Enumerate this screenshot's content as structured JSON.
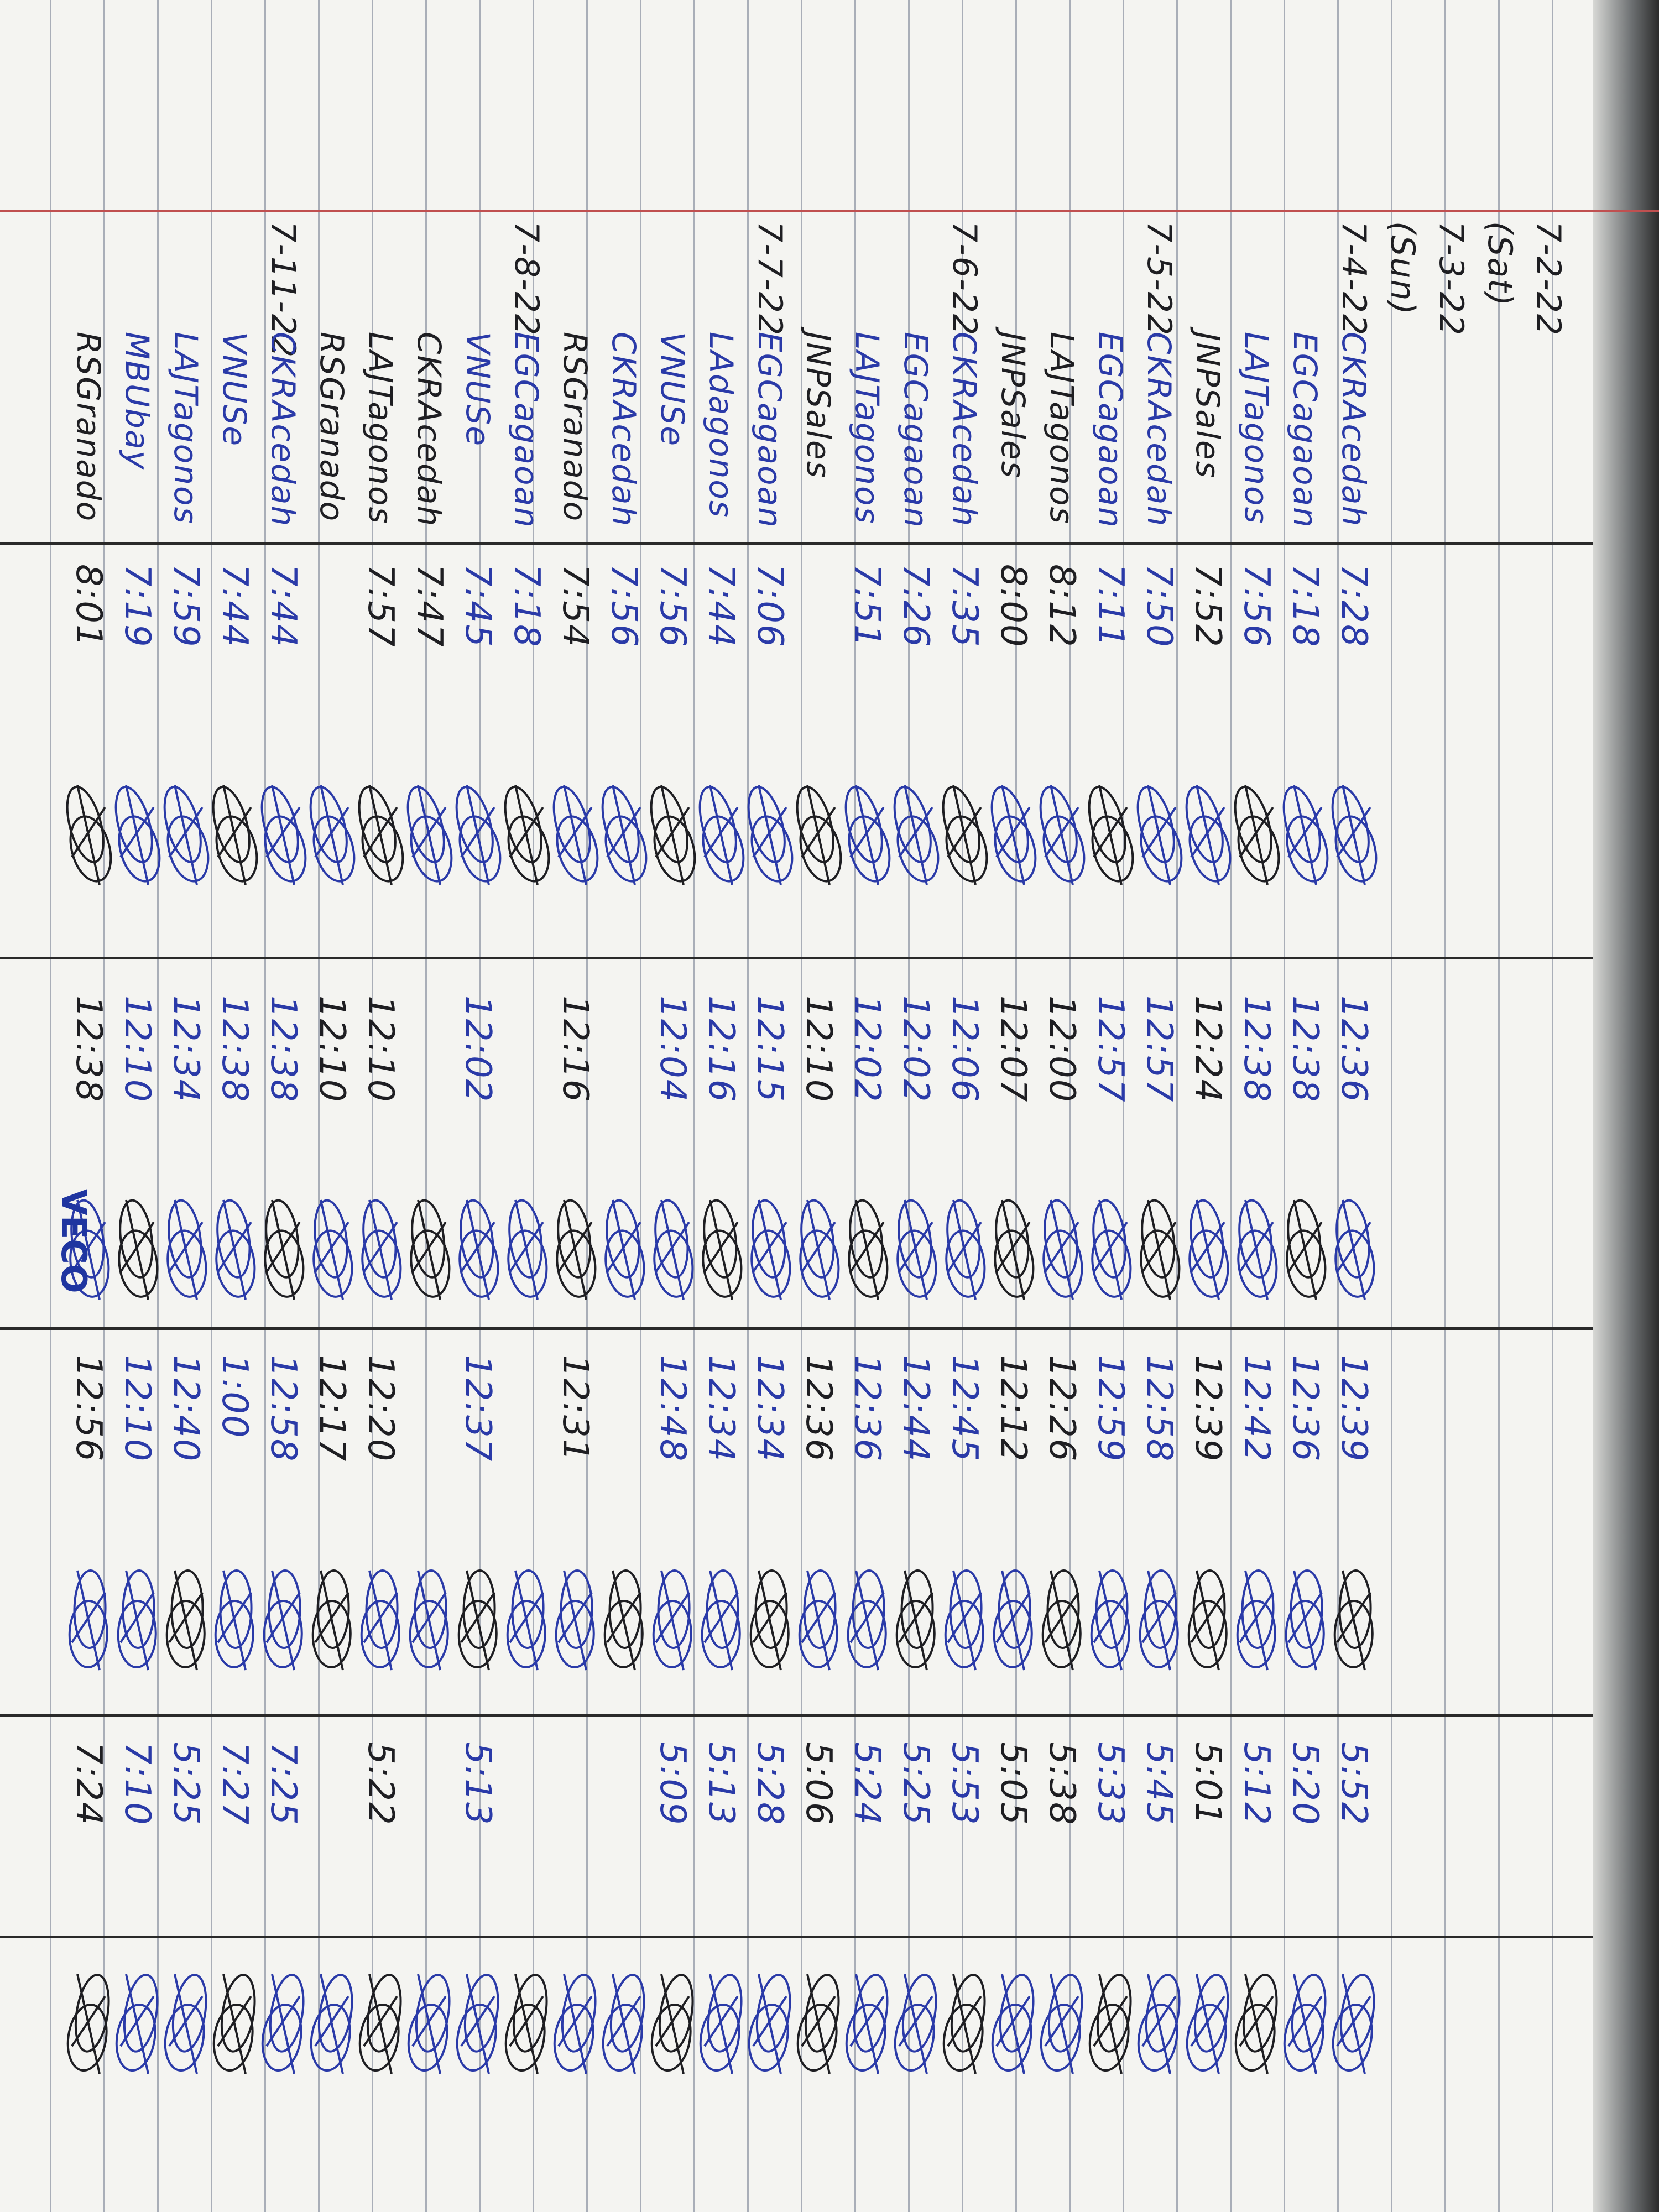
{
  "logbook": {
    "ink_colors": {
      "blue": "#2a3aa8",
      "black": "#1e1e22"
    },
    "rows": [
      {
        "date": "7-2-22",
        "name": "",
        "am_in": "",
        "am_out": "",
        "pm_in": "",
        "pm_out": "",
        "ink": "black"
      },
      {
        "date": "(Sat)",
        "name": "",
        "am_in": "",
        "am_out": "",
        "pm_in": "",
        "pm_out": "",
        "ink": "black"
      },
      {
        "date": "7-3-22",
        "name": "",
        "am_in": "",
        "am_out": "",
        "pm_in": "",
        "pm_out": "",
        "ink": "black"
      },
      {
        "date": "(Sun)",
        "name": "",
        "am_in": "",
        "am_out": "",
        "pm_in": "",
        "pm_out": "",
        "ink": "black"
      },
      {
        "date": "7-4-22",
        "name": "CKRAcedah",
        "am_in": "7:28",
        "am_out": "12:36",
        "pm_in": "12:39",
        "pm_out": "5:52",
        "ink": "blue"
      },
      {
        "date": "",
        "name": "EGCagaoan",
        "am_in": "7:18",
        "am_out": "12:38",
        "pm_in": "12:36",
        "pm_out": "5:20",
        "ink": "blue"
      },
      {
        "date": "",
        "name": "LAJTagonos",
        "am_in": "7:56",
        "am_out": "12:38",
        "pm_in": "12:42",
        "pm_out": "5:12",
        "ink": "blue"
      },
      {
        "date": "",
        "name": "JNPSales",
        "am_in": "7:52",
        "am_out": "12:24",
        "pm_in": "12:39",
        "pm_out": "5:01",
        "ink": "black"
      },
      {
        "date": "7-5-22",
        "name": "CKRAcedah",
        "am_in": "7:50",
        "am_out": "12:57",
        "pm_in": "12:58",
        "pm_out": "5:45",
        "ink": "blue"
      },
      {
        "date": "",
        "name": "EGCagaoan",
        "am_in": "7:11",
        "am_out": "12:57",
        "pm_in": "12:59",
        "pm_out": "5:33",
        "ink": "blue"
      },
      {
        "date": "",
        "name": "LAJTagonos",
        "am_in": "8:12",
        "am_out": "12:00",
        "pm_in": "12:26",
        "pm_out": "5:38",
        "ink": "black"
      },
      {
        "date": "",
        "name": "JNPSales",
        "am_in": "8:00",
        "am_out": "12:07",
        "pm_in": "12:12",
        "pm_out": "5:05",
        "ink": "black"
      },
      {
        "date": "7-6-22",
        "name": "CKRAcedah",
        "am_in": "7:35",
        "am_out": "12:06",
        "pm_in": "12:45",
        "pm_out": "5:53",
        "ink": "blue"
      },
      {
        "date": "",
        "name": "EGCagaoan",
        "am_in": "7:26",
        "am_out": "12:02",
        "pm_in": "12:44",
        "pm_out": "5:25",
        "ink": "blue"
      },
      {
        "date": "",
        "name": "LAJTagonos",
        "am_in": "7:51",
        "am_out": "12:02",
        "pm_in": "12:36",
        "pm_out": "5:24",
        "ink": "blue"
      },
      {
        "date": "",
        "name": "JNPSales",
        "am_in": "",
        "am_out": "12:10",
        "pm_in": "12:36",
        "pm_out": "5:06",
        "ink": "black"
      },
      {
        "date": "7-7-22",
        "name": "EGCagaoan",
        "am_in": "7:06",
        "am_out": "12:15",
        "pm_in": "12:34",
        "pm_out": "5:28",
        "ink": "blue"
      },
      {
        "date": "",
        "name": "LAdagonos",
        "am_in": "7:44",
        "am_out": "12:16",
        "pm_in": "12:34",
        "pm_out": "5:13",
        "ink": "blue"
      },
      {
        "date": "",
        "name": "VNUSe",
        "am_in": "7:56",
        "am_out": "12:04",
        "pm_in": "12:48",
        "pm_out": "5:09",
        "ink": "blue"
      },
      {
        "date": "",
        "name": "CKRAcedah",
        "am_in": "7:56",
        "am_out": "",
        "pm_in": "",
        "pm_out": "",
        "ink": "blue"
      },
      {
        "date": "",
        "name": "RSGranado",
        "am_in": "7:54",
        "am_out": "12:16",
        "pm_in": "12:31",
        "pm_out": "",
        "ink": "black"
      },
      {
        "date": "7-8-22",
        "name": "EGCagaoan",
        "am_in": "7:18",
        "am_out": "",
        "pm_in": "",
        "pm_out": "",
        "ink": "blue"
      },
      {
        "date": "",
        "name": "VNUSe",
        "am_in": "7:45",
        "am_out": "12:02",
        "pm_in": "12:37",
        "pm_out": "5:13",
        "ink": "blue"
      },
      {
        "date": "",
        "name": "CKRAcedah",
        "am_in": "7:47",
        "am_out": "",
        "pm_in": "",
        "pm_out": "",
        "ink": "black"
      },
      {
        "date": "",
        "name": "LAJTagonos",
        "am_in": "7:57",
        "am_out": "12:10",
        "pm_in": "12:20",
        "pm_out": "5:22",
        "ink": "black"
      },
      {
        "date": "",
        "name": "RSGranado",
        "am_in": "",
        "am_out": "12:10",
        "pm_in": "12:17",
        "pm_out": "",
        "ink": "black"
      },
      {
        "date": "7-11-22",
        "name": "CKRAcedah",
        "am_in": "7:44",
        "am_out": "12:38",
        "pm_in": "12:58",
        "pm_out": "7:25",
        "ink": "blue"
      },
      {
        "date": "",
        "name": "VNUSe",
        "am_in": "7:44",
        "am_out": "12:38",
        "pm_in": "1:00",
        "pm_out": "7:27",
        "ink": "blue"
      },
      {
        "date": "",
        "name": "LAJTagonos",
        "am_in": "7:59",
        "am_out": "12:34",
        "pm_in": "12:40",
        "pm_out": "5:25",
        "ink": "blue"
      },
      {
        "date": "",
        "name": "MBUbay",
        "am_in": "7:19",
        "am_out": "12:10",
        "pm_in": "12:10",
        "pm_out": "7:10",
        "ink": "blue"
      },
      {
        "date": "",
        "name": "RSGranado",
        "am_in": "8:01",
        "am_out": "12:38",
        "pm_in": "12:56",
        "pm_out": "7:24",
        "ink": "black"
      }
    ],
    "stamp": "VECO"
  }
}
